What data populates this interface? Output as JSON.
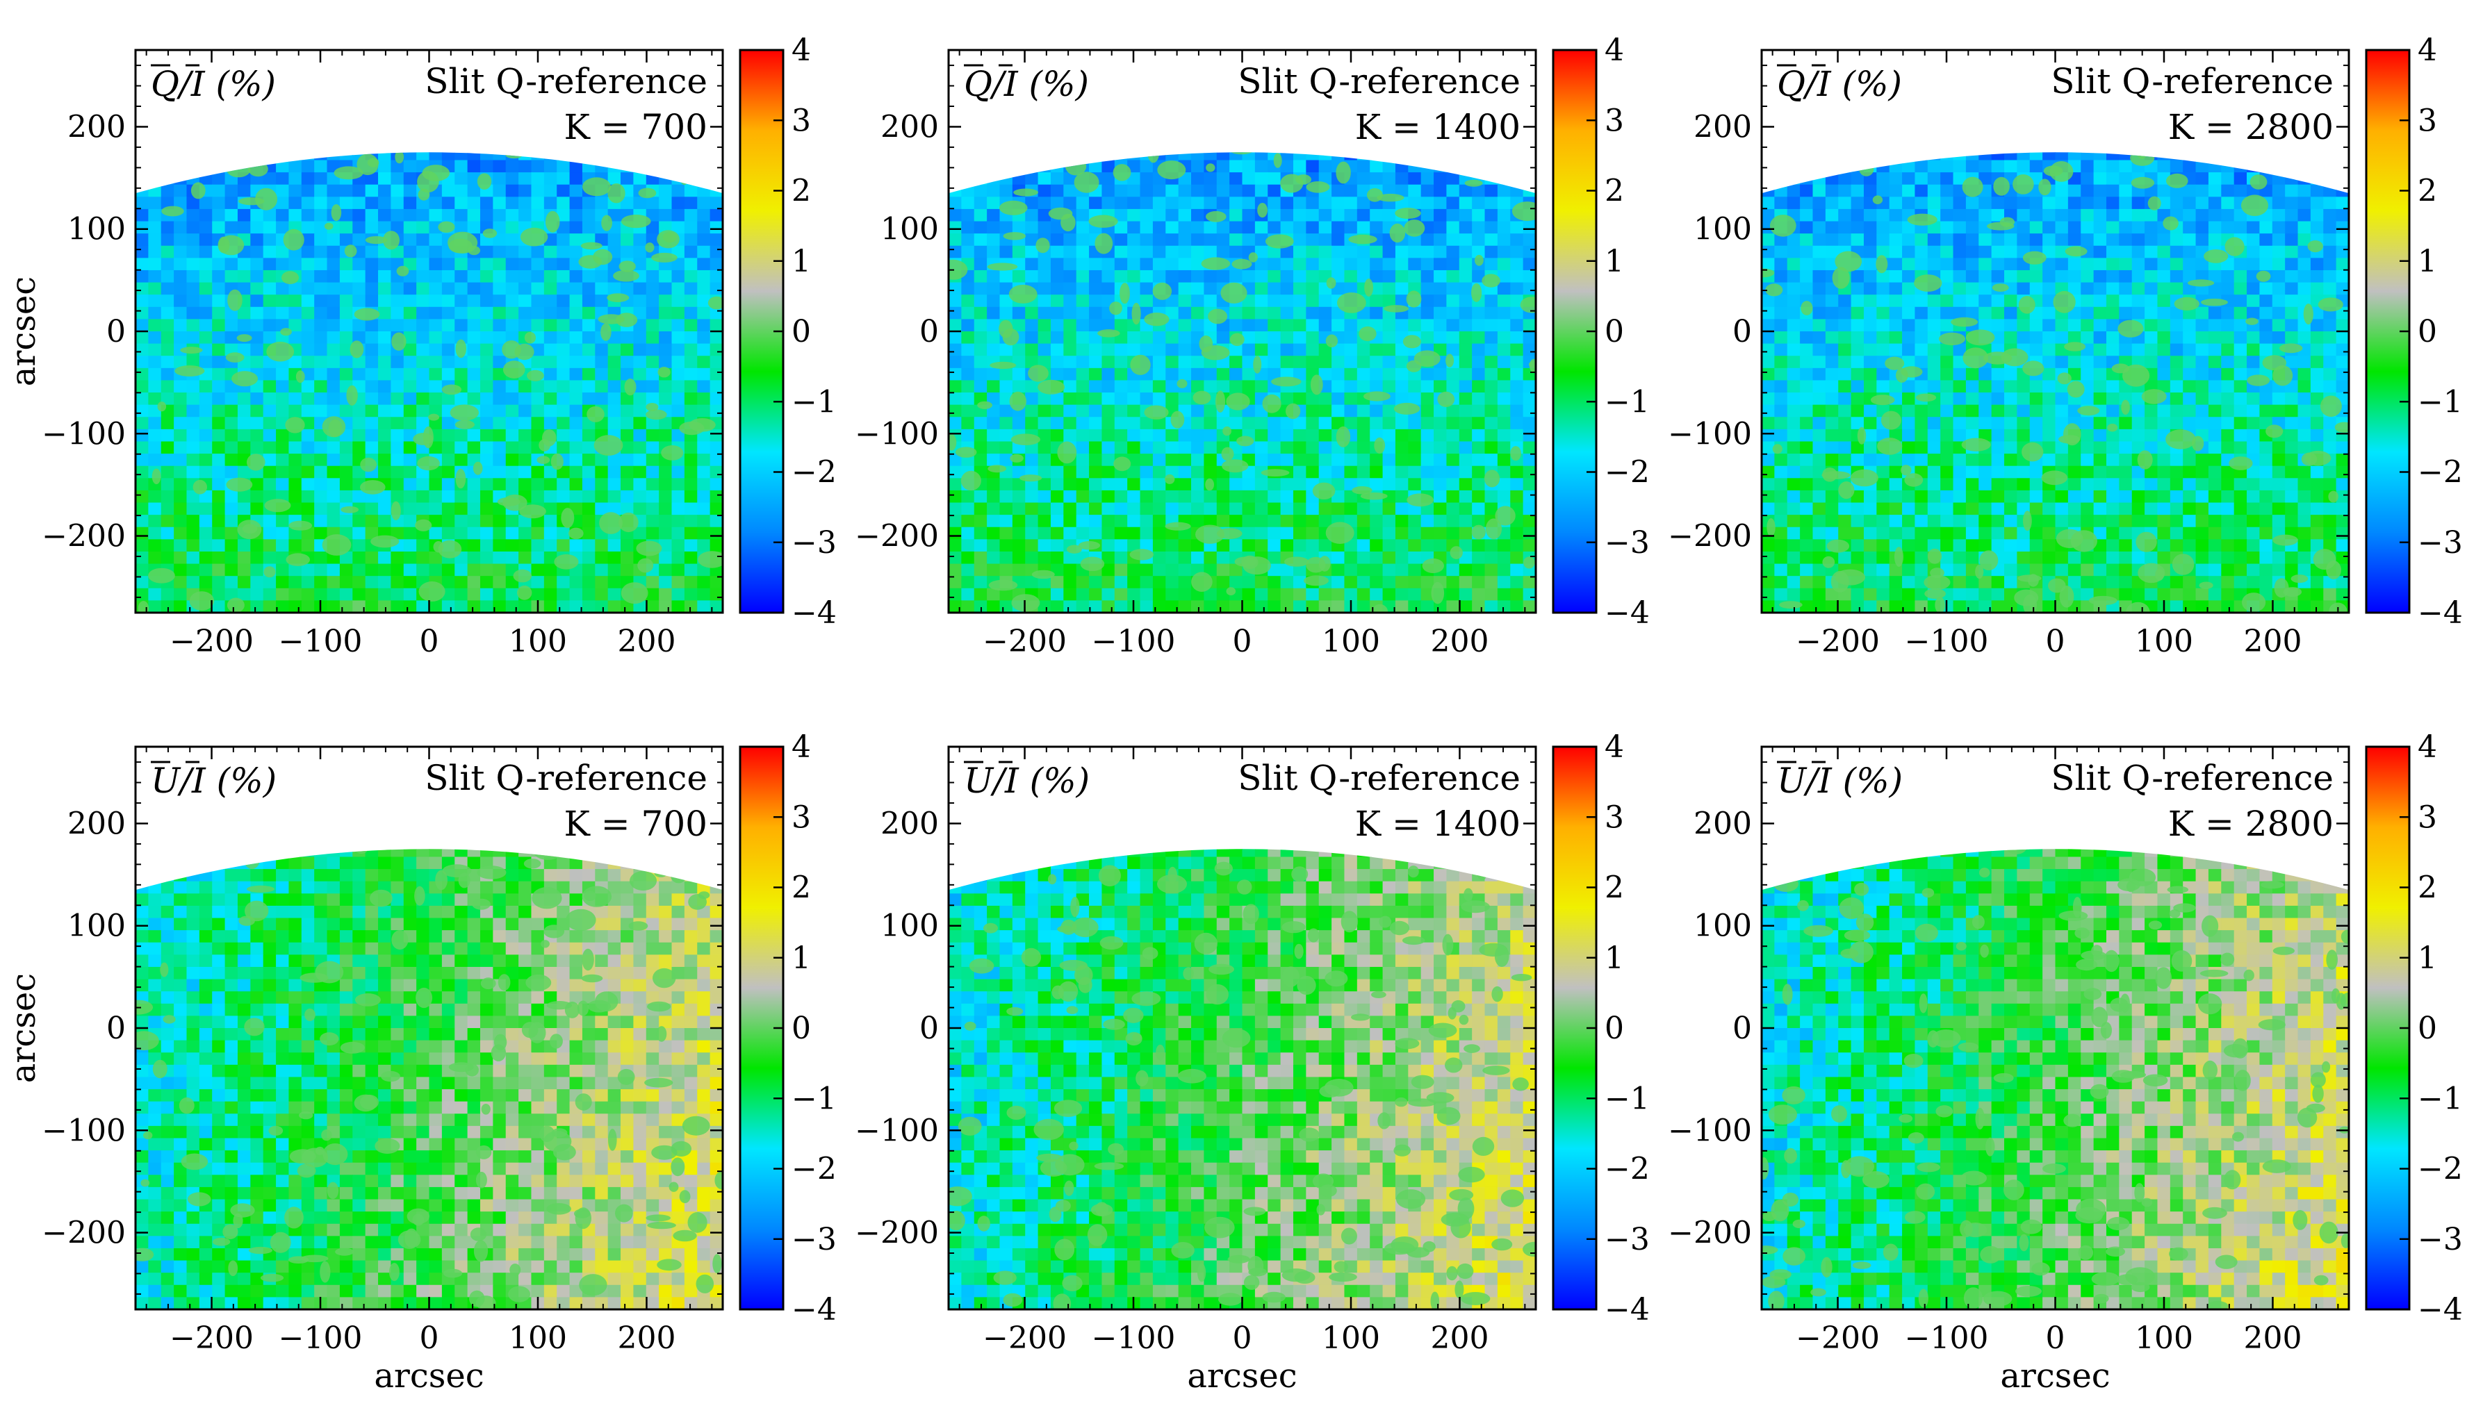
{
  "chart_data": [
    {
      "type": "heatmap",
      "quantity": "Q",
      "title": "Q/I (%)",
      "label_line1": "Slit Q-reference",
      "label_line2": "K = 700",
      "xlabel": "",
      "ylabel": "arcsec",
      "xlim": [
        -270,
        270
      ],
      "ylim": [
        -275,
        275
      ],
      "x_ticks": [
        "−200",
        "−100",
        "0",
        "100",
        "200"
      ],
      "x_tick_values": [
        -200,
        -100,
        0,
        100,
        200
      ],
      "y_ticks": [
        "200",
        "100",
        "0",
        "−100",
        "−200"
      ],
      "y_tick_values": [
        200,
        100,
        0,
        -100,
        -200
      ],
      "colorbar": {
        "range": [
          -4,
          4
        ],
        "ticks": [
          "4",
          "3",
          "2",
          "1",
          "0",
          "−1",
          "−2",
          "−3",
          "−4"
        ],
        "tick_values": [
          4,
          3,
          2,
          1,
          0,
          -1,
          -2,
          -3,
          -4
        ]
      },
      "disk_edge_y_at_center": 175,
      "disk_edge_y_at_edges": 135
    },
    {
      "type": "heatmap",
      "quantity": "Q",
      "title": "Q/I (%)",
      "label_line1": "Slit Q-reference",
      "label_line2": "K = 1400",
      "xlabel": "",
      "ylabel": "",
      "xlim": [
        -270,
        270
      ],
      "ylim": [
        -275,
        275
      ],
      "x_ticks": [
        "−200",
        "−100",
        "0",
        "100",
        "200"
      ],
      "x_tick_values": [
        -200,
        -100,
        0,
        100,
        200
      ],
      "y_ticks": [
        "200",
        "100",
        "0",
        "−100",
        "−200"
      ],
      "y_tick_values": [
        200,
        100,
        0,
        -100,
        -200
      ],
      "colorbar": {
        "range": [
          -4,
          4
        ],
        "ticks": [
          "4",
          "3",
          "2",
          "1",
          "0",
          "−1",
          "−2",
          "−3",
          "−4"
        ],
        "tick_values": [
          4,
          3,
          2,
          1,
          0,
          -1,
          -2,
          -3,
          -4
        ]
      },
      "disk_edge_y_at_center": 175,
      "disk_edge_y_at_edges": 135
    },
    {
      "type": "heatmap",
      "quantity": "Q",
      "title": "Q/I (%)",
      "label_line1": "Slit Q-reference",
      "label_line2": "K = 2800",
      "xlabel": "",
      "ylabel": "",
      "xlim": [
        -270,
        270
      ],
      "ylim": [
        -275,
        275
      ],
      "x_ticks": [
        "−200",
        "−100",
        "0",
        "100",
        "200"
      ],
      "x_tick_values": [
        -200,
        -100,
        0,
        100,
        200
      ],
      "y_ticks": [
        "200",
        "100",
        "0",
        "−100",
        "−200"
      ],
      "y_tick_values": [
        200,
        100,
        0,
        -100,
        -200
      ],
      "colorbar": {
        "range": [
          -4,
          4
        ],
        "ticks": [
          "4",
          "3",
          "2",
          "1",
          "0",
          "−1",
          "−2",
          "−3",
          "−4"
        ],
        "tick_values": [
          4,
          3,
          2,
          1,
          0,
          -1,
          -2,
          -3,
          -4
        ]
      },
      "disk_edge_y_at_center": 175,
      "disk_edge_y_at_edges": 135
    },
    {
      "type": "heatmap",
      "quantity": "U",
      "title": "U/I (%)",
      "label_line1": "Slit Q-reference",
      "label_line2": "K = 700",
      "xlabel": "arcsec",
      "ylabel": "arcsec",
      "xlim": [
        -270,
        270
      ],
      "ylim": [
        -275,
        275
      ],
      "x_ticks": [
        "−200",
        "−100",
        "0",
        "100",
        "200"
      ],
      "x_tick_values": [
        -200,
        -100,
        0,
        100,
        200
      ],
      "y_ticks": [
        "200",
        "100",
        "0",
        "−100",
        "−200"
      ],
      "y_tick_values": [
        200,
        100,
        0,
        -100,
        -200
      ],
      "colorbar": {
        "range": [
          -4,
          4
        ],
        "ticks": [
          "4",
          "3",
          "2",
          "1",
          "0",
          "−1",
          "−2",
          "−3",
          "−4"
        ],
        "tick_values": [
          4,
          3,
          2,
          1,
          0,
          -1,
          -2,
          -3,
          -4
        ]
      },
      "disk_edge_y_at_center": 175,
      "disk_edge_y_at_edges": 135
    },
    {
      "type": "heatmap",
      "quantity": "U",
      "title": "U/I (%)",
      "label_line1": "Slit Q-reference",
      "label_line2": "K = 1400",
      "xlabel": "arcsec",
      "ylabel": "",
      "xlim": [
        -270,
        270
      ],
      "ylim": [
        -275,
        275
      ],
      "x_ticks": [
        "−200",
        "−100",
        "0",
        "100",
        "200"
      ],
      "x_tick_values": [
        -200,
        -100,
        0,
        100,
        200
      ],
      "y_ticks": [
        "200",
        "100",
        "0",
        "−100",
        "−200"
      ],
      "y_tick_values": [
        200,
        100,
        0,
        -100,
        -200
      ],
      "colorbar": {
        "range": [
          -4,
          4
        ],
        "ticks": [
          "4",
          "3",
          "2",
          "1",
          "0",
          "−1",
          "−2",
          "−3",
          "−4"
        ],
        "tick_values": [
          4,
          3,
          2,
          1,
          0,
          -1,
          -2,
          -3,
          -4
        ]
      },
      "disk_edge_y_at_center": 175,
      "disk_edge_y_at_edges": 135
    },
    {
      "type": "heatmap",
      "quantity": "U",
      "title": "U/I (%)",
      "label_line1": "Slit Q-reference",
      "label_line2": "K = 2800",
      "xlabel": "arcsec",
      "ylabel": "",
      "xlim": [
        -270,
        270
      ],
      "ylim": [
        -275,
        275
      ],
      "x_ticks": [
        "−200",
        "−100",
        "0",
        "100",
        "200"
      ],
      "x_tick_values": [
        -200,
        -100,
        0,
        100,
        200
      ],
      "y_ticks": [
        "200",
        "100",
        "0",
        "−100",
        "−200"
      ],
      "y_tick_values": [
        200,
        100,
        0,
        -100,
        -200
      ],
      "colorbar": {
        "range": [
          -4,
          4
        ],
        "ticks": [
          "4",
          "3",
          "2",
          "1",
          "0",
          "−1",
          "−2",
          "−3",
          "−4"
        ],
        "tick_values": [
          4,
          3,
          2,
          1,
          0,
          -1,
          -2,
          -3,
          -4
        ]
      },
      "disk_edge_y_at_center": 175,
      "disk_edge_y_at_edges": 135
    }
  ],
  "colormap": [
    "#0000ff",
    "#0088ff",
    "#00e6ff",
    "#00e600",
    "#c0c0c0",
    "#f0f000",
    "#ffb000",
    "#ff0000"
  ]
}
